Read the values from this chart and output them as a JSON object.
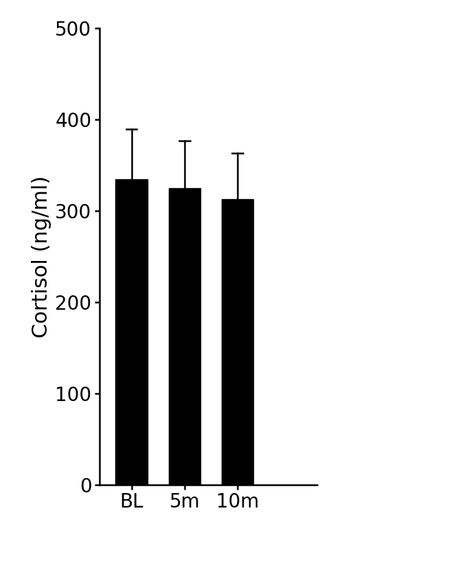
{
  "categories": [
    "BL",
    "5m",
    "10m"
  ],
  "values": [
    335,
    325,
    313
  ],
  "errors": [
    55,
    52,
    50
  ],
  "bar_color": "#000000",
  "error_color": "#000000",
  "ylabel": "Cortisol (ng/ml)",
  "ylim": [
    0,
    500
  ],
  "yticks": [
    0,
    100,
    200,
    300,
    400,
    500
  ],
  "bar_width": 0.6,
  "background_color": "#ffffff",
  "tick_fontsize": 20,
  "label_fontsize": 22,
  "error_capsize": 7,
  "error_linewidth": 1.8
}
